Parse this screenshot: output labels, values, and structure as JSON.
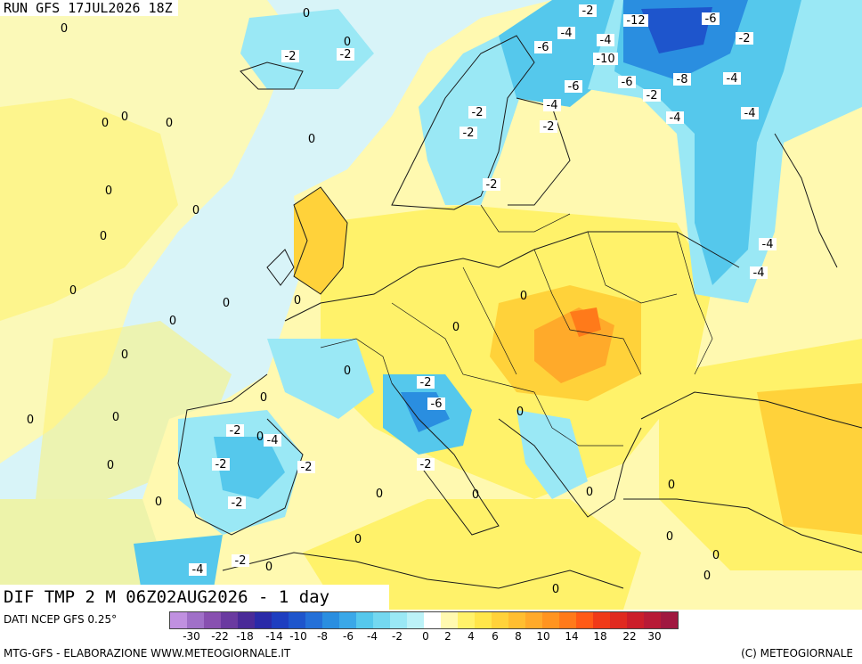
{
  "run_label": "RUN GFS 17JUL2026 18Z",
  "title": "DIF TMP 2 M 06Z02AUG2026 - 1 day",
  "source": "DATI NCEP GFS 0.25°",
  "credit_left": "MTG-GFS - ELABORAZIONE WWW.METEOGIORNALE.IT",
  "credit_right": "(C) METEOGIORNALE",
  "colors": {
    "ocean_neutral": "#d8f4f8",
    "land_neutral": "#fff9b0",
    "warm1": "#fff26a",
    "warm2": "#ffd23a",
    "warm3": "#ffaa2a",
    "warm4": "#ff7a1a",
    "cool1": "#9ae8f5",
    "cool2": "#55c8ec",
    "cool3": "#2a8ee0",
    "cool4": "#1e55cc",
    "border": "#1a1a1a"
  },
  "colorbar": {
    "colors": [
      "#c090e0",
      "#a070c8",
      "#8850b0",
      "#6a3aa0",
      "#4a2a98",
      "#2a2aa8",
      "#1e3ec0",
      "#1e55cc",
      "#2470d8",
      "#2a8ee0",
      "#3aa8e8",
      "#55c8ec",
      "#74d8f0",
      "#9ae8f5",
      "#bcf2f8",
      "#ffffff",
      "#fff9b0",
      "#fff26a",
      "#ffe64a",
      "#ffd23a",
      "#ffbe30",
      "#ffaa2a",
      "#ff9420",
      "#ff7a1a",
      "#ff5a16",
      "#f03a18",
      "#e02a20",
      "#cc1e2a",
      "#b81a36",
      "#a01840"
    ],
    "ticks": [
      "-30",
      "-22",
      "-18",
      "-14",
      "-10",
      "-8",
      "-6",
      "-4",
      "-2",
      "0",
      "2",
      "4",
      "6",
      "8",
      "10",
      "14",
      "18",
      "22",
      "30"
    ]
  },
  "contour_labels": [
    {
      "text": "0"
    },
    {
      "text": "-2"
    },
    {
      "text": "-12"
    },
    {
      "text": "-6"
    },
    {
      "text": "-4"
    },
    {
      "text": "-2"
    },
    {
      "text": "0"
    },
    {
      "text": "0"
    },
    {
      "text": "-2"
    },
    {
      "text": "-2"
    },
    {
      "text": "-6"
    },
    {
      "text": "-4"
    },
    {
      "text": "-10"
    },
    {
      "text": "-4"
    },
    {
      "text": "-6"
    },
    {
      "text": "-6"
    },
    {
      "text": "-8"
    },
    {
      "text": "-2"
    },
    {
      "text": "-4"
    },
    {
      "text": "-4"
    },
    {
      "text": "-4"
    },
    {
      "text": "-2"
    },
    {
      "text": "-2"
    },
    {
      "text": "-2"
    },
    {
      "text": "-2"
    },
    {
      "text": "0"
    },
    {
      "text": "0"
    },
    {
      "text": "0"
    },
    {
      "text": "0"
    },
    {
      "text": "0"
    },
    {
      "text": "0"
    },
    {
      "text": "0"
    },
    {
      "text": "0"
    },
    {
      "text": "0"
    },
    {
      "text": "0"
    },
    {
      "text": "0"
    },
    {
      "text": "0"
    },
    {
      "text": "-4"
    },
    {
      "text": "-4"
    },
    {
      "text": "0"
    },
    {
      "text": "0"
    },
    {
      "text": "0"
    },
    {
      "text": "0"
    },
    {
      "text": "-2"
    },
    {
      "text": "-6"
    },
    {
      "text": "0"
    },
    {
      "text": "0"
    },
    {
      "text": "0"
    },
    {
      "text": "0"
    },
    {
      "text": "-2"
    },
    {
      "text": "0"
    },
    {
      "text": "-4"
    },
    {
      "text": "-2"
    },
    {
      "text": "-2"
    },
    {
      "text": "-2"
    },
    {
      "text": "0"
    },
    {
      "text": "-2"
    },
    {
      "text": "0"
    },
    {
      "text": "0"
    },
    {
      "text": "0"
    },
    {
      "text": "0"
    },
    {
      "text": "0"
    },
    {
      "text": "0"
    },
    {
      "text": "-4"
    },
    {
      "text": "-2"
    },
    {
      "text": "0"
    },
    {
      "text": "0"
    },
    {
      "text": "0"
    },
    {
      "text": "0"
    }
  ]
}
